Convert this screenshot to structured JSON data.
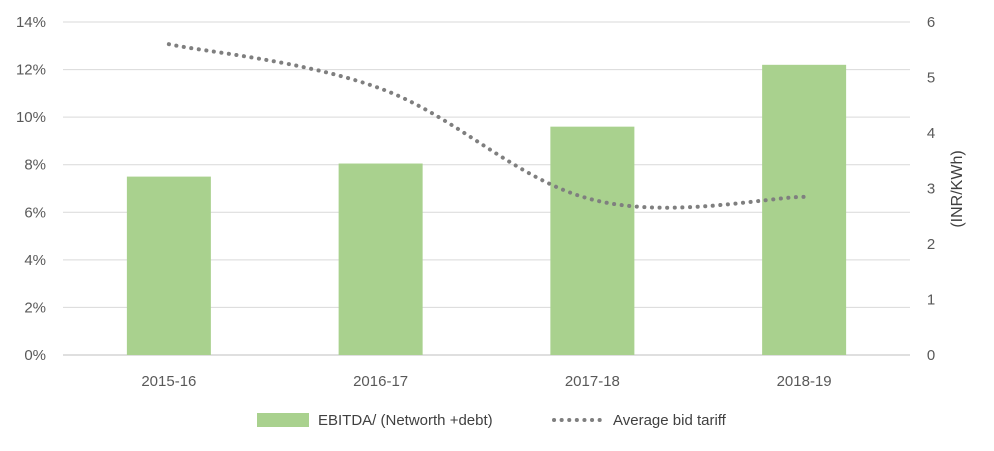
{
  "chart_data": {
    "type": "bar",
    "categories": [
      "2015-16",
      "2016-17",
      "2017-18",
      "2018-19"
    ],
    "series": [
      {
        "name": "EBITDA/ (Networth +debt)",
        "type": "bar",
        "axis": "left",
        "color": "#a9d18e",
        "values": [
          7.5,
          8.05,
          9.6,
          12.2
        ]
      },
      {
        "name": "Average bid tariff",
        "type": "line",
        "style": "dotted",
        "axis": "right",
        "color": "#7f7f7f",
        "values": [
          5.6,
          4.8,
          2.8,
          2.85
        ]
      }
    ],
    "y_left": {
      "min": 0,
      "max": 14,
      "step": 2,
      "tick_labels": [
        "0%",
        "2%",
        "4%",
        "6%",
        "8%",
        "10%",
        "12%",
        "14%"
      ]
    },
    "y_right": {
      "min": 0,
      "max": 6,
      "step": 1,
      "label": "(INR/KWh)",
      "tick_labels": [
        "0",
        "1",
        "2",
        "3",
        "4",
        "5",
        "6"
      ]
    },
    "grid": true,
    "legend_position": "bottom"
  }
}
